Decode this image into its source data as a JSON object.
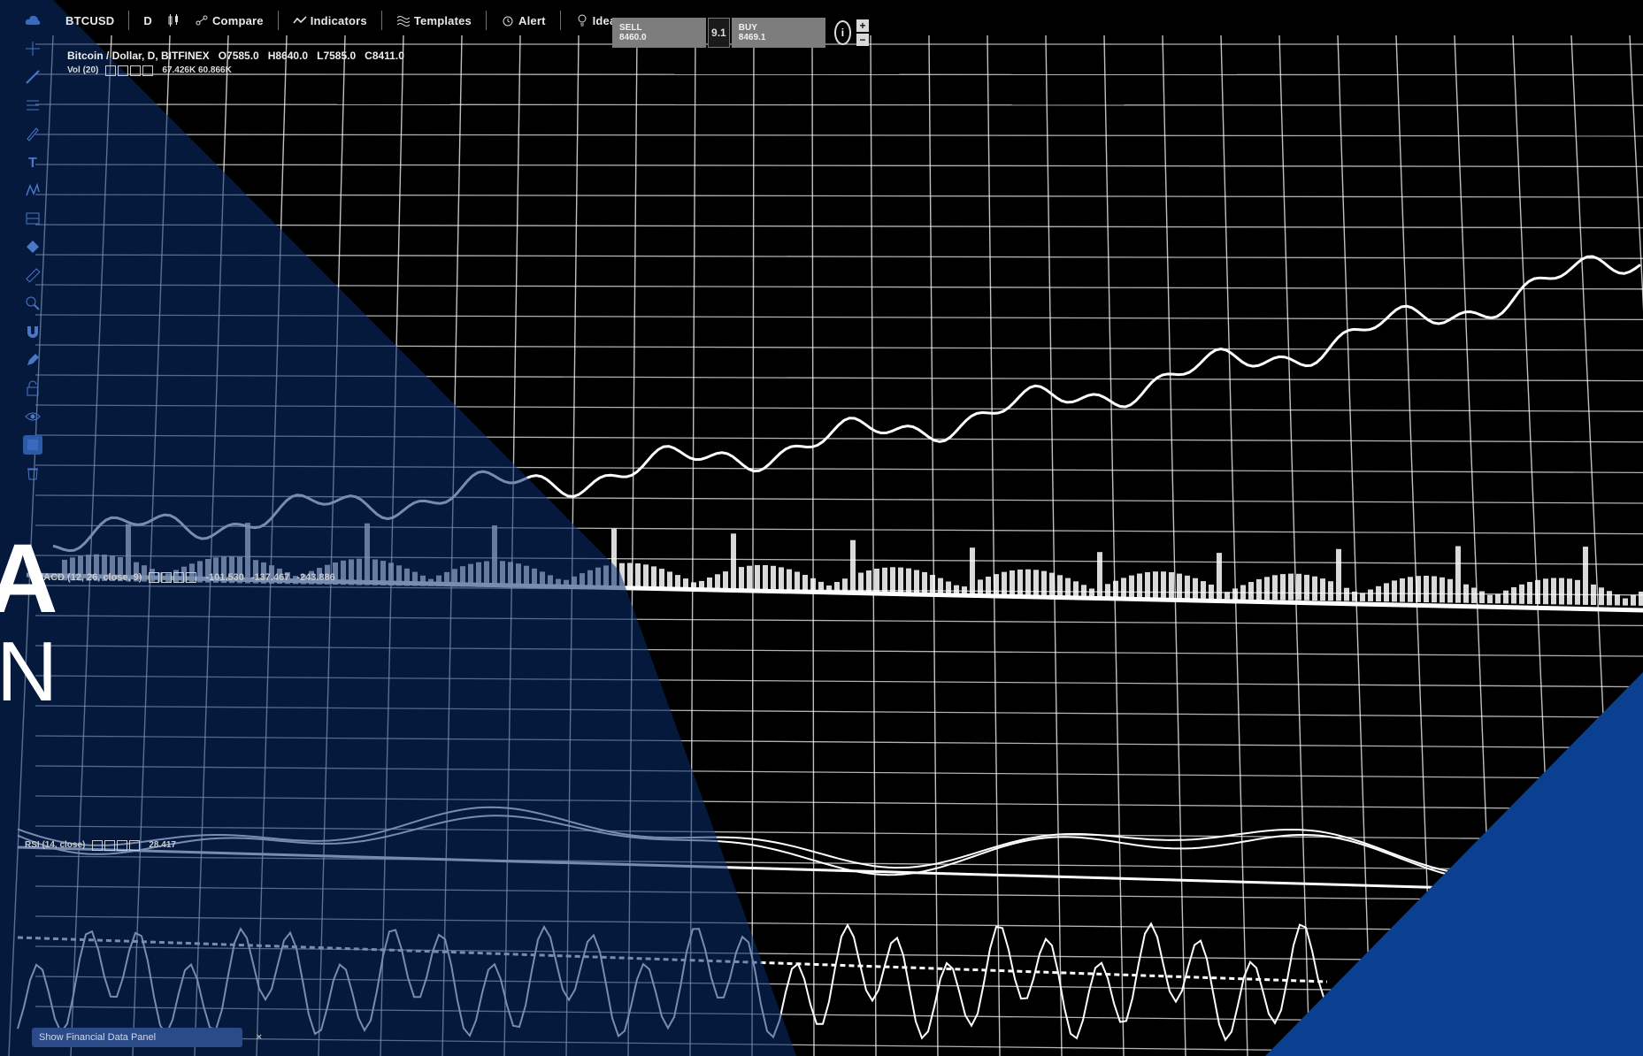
{
  "toolbar": {
    "symbol": "BTCUSD",
    "interval": "D",
    "compare": "Compare",
    "indicators": "Indicators",
    "templates": "Templates",
    "alert": "Alert",
    "ideas": "Ideas"
  },
  "tradebox": {
    "sell_label": "SELL",
    "sell_price": "8460.0",
    "qty": "9.1",
    "buy_label": "BUY",
    "buy_price": "8469.1"
  },
  "legend": {
    "main_title": "Bitcoin / Dollar, D, BITFINEX",
    "open": "O7585.0",
    "high": "H8640.0",
    "low": "L7585.0",
    "close": "C8411.0",
    "volume_label": "Vol (20)",
    "volume_values": "67.426K 60.866K",
    "osc_label": "MACD (12, 26, close, 9)",
    "osc_values": [
      "-101.530",
      "-137.467",
      "-243.886"
    ],
    "rsi_label": "RSI (14, close)",
    "rsi_value": "28.417"
  },
  "headline": {
    "a": "A",
    "n": "N"
  },
  "bottom_bar": {
    "label": "Show Financial Data Panel",
    "close": "×"
  },
  "colors": {
    "grid": "#ffffff",
    "accent_blue": "#0b3f8f",
    "background": "#000000"
  },
  "icons": [
    "cloud-icon",
    "crosshair-icon",
    "trendline-icon",
    "fib-icon",
    "brush-icon",
    "text-icon",
    "pattern-icon",
    "measure-icon",
    "gem-icon",
    "ruler-icon",
    "zoom-icon",
    "magnet-icon",
    "lock-icon",
    "eye-icon",
    "trash-icon"
  ]
}
